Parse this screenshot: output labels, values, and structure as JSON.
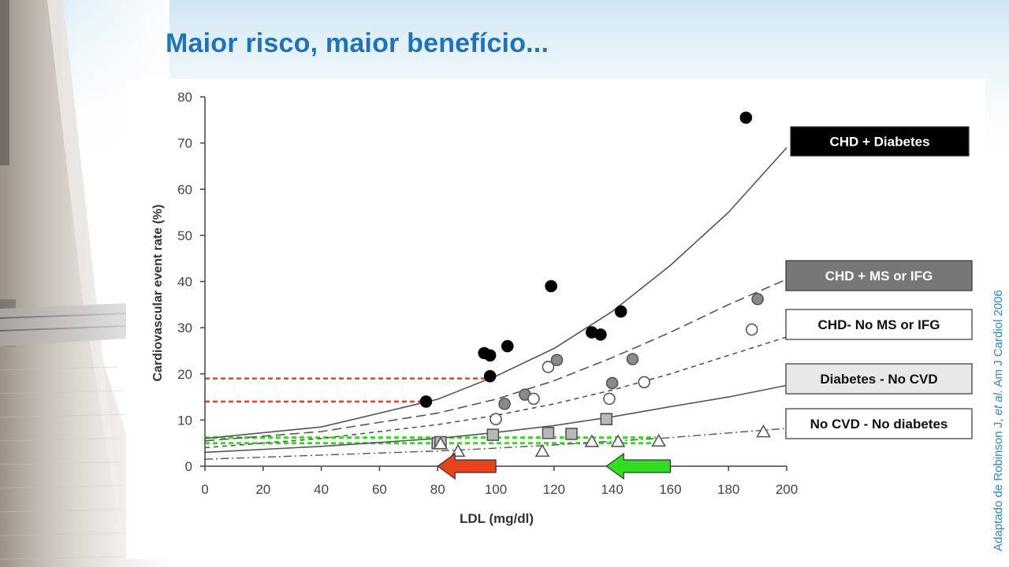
{
  "slide": {
    "title": "Maior risco, maior benefício...",
    "citation_prefix": "Adaptado de Robinson J, ",
    "citation_italic": "et al.",
    "citation_suffix": "  Am J Cardiol 2006"
  },
  "colors": {
    "title": "#1f73b8",
    "citation": "#2a88c7",
    "red_marker": "#e8431c",
    "green_marker": "#33dd22"
  },
  "chart_data": {
    "type": "scatter",
    "xlabel": "LDL (mg/dl)",
    "ylabel": "Cardiovascular event rate (%)",
    "xlim": [
      0,
      200
    ],
    "ylim": [
      0,
      80
    ],
    "xticks": [
      0,
      20,
      40,
      60,
      80,
      100,
      120,
      140,
      160,
      180,
      200
    ],
    "yticks": [
      0,
      10,
      20,
      30,
      40,
      50,
      60,
      70,
      80
    ],
    "series": [
      {
        "name": "CHD + Diabetes",
        "marker": "filled-black-circle",
        "points": [
          [
            76,
            14
          ],
          [
            96,
            24.5
          ],
          [
            98,
            24
          ],
          [
            98,
            19.5
          ],
          [
            104,
            26
          ],
          [
            119,
            39
          ],
          [
            133,
            29
          ],
          [
            136,
            28.5
          ],
          [
            143,
            33.5
          ],
          [
            186,
            75.5
          ]
        ],
        "curve": [
          [
            0,
            6
          ],
          [
            40,
            8.5
          ],
          [
            80,
            14.5
          ],
          [
            100,
            19.5
          ],
          [
            120,
            25.5
          ],
          [
            140,
            33.5
          ],
          [
            160,
            43.5
          ],
          [
            180,
            55
          ],
          [
            200,
            69
          ]
        ]
      },
      {
        "name": "CHD + MS or IFG",
        "marker": "gray-circle",
        "points": [
          [
            103,
            13.5
          ],
          [
            110,
            15.5
          ],
          [
            121,
            23
          ],
          [
            140,
            18
          ],
          [
            147,
            23.2
          ],
          [
            190,
            36.2
          ]
        ],
        "curve": [
          [
            0,
            5.5
          ],
          [
            40,
            7.5
          ],
          [
            80,
            11.5
          ],
          [
            100,
            14.5
          ],
          [
            120,
            18.5
          ],
          [
            140,
            23.5
          ],
          [
            160,
            29
          ],
          [
            180,
            35
          ],
          [
            200,
            40.5
          ]
        ]
      },
      {
        "name": "CHD- No MS or IFG",
        "marker": "open-circle",
        "points": [
          [
            100,
            10.2
          ],
          [
            113,
            14.6
          ],
          [
            118,
            21.5
          ],
          [
            139,
            14.6
          ],
          [
            151,
            18.2
          ],
          [
            188,
            29.6
          ]
        ],
        "curve": [
          [
            0,
            4
          ],
          [
            40,
            6
          ],
          [
            80,
            9
          ],
          [
            100,
            11
          ],
          [
            120,
            13.5
          ],
          [
            140,
            16.5
          ],
          [
            160,
            20
          ],
          [
            180,
            24
          ],
          [
            200,
            28
          ]
        ]
      },
      {
        "name": "Diabetes - No CVD",
        "marker": "gray-square",
        "points": [
          [
            80,
            5
          ],
          [
            81,
            5.2
          ],
          [
            99,
            6.8
          ],
          [
            118,
            7.2
          ],
          [
            126,
            7.0
          ],
          [
            138,
            10.2
          ]
        ],
        "curve": [
          [
            0,
            3
          ],
          [
            40,
            4.3
          ],
          [
            80,
            6
          ],
          [
            100,
            7.3
          ],
          [
            120,
            8.8
          ],
          [
            140,
            10.7
          ],
          [
            160,
            12.9
          ],
          [
            180,
            15
          ],
          [
            200,
            17.5
          ]
        ]
      },
      {
        "name": "No CVD - No diabetes",
        "marker": "open-triangle",
        "points": [
          [
            81,
            4.8
          ],
          [
            87,
            3.2
          ],
          [
            116,
            3.2
          ],
          [
            133,
            5.3
          ],
          [
            142,
            5.3
          ],
          [
            156,
            5.4
          ],
          [
            192,
            7.4
          ]
        ],
        "curve": [
          [
            0,
            1.5
          ],
          [
            40,
            2.4
          ],
          [
            80,
            3.3
          ],
          [
            100,
            3.9
          ],
          [
            120,
            4.6
          ],
          [
            140,
            5.4
          ],
          [
            160,
            6.2
          ],
          [
            180,
            7.2
          ],
          [
            200,
            8.2
          ]
        ]
      }
    ],
    "reference_lines": [
      {
        "color": "red",
        "y": 19,
        "x_from": 0,
        "x_to": 98
      },
      {
        "color": "red",
        "y": 14,
        "x_from": 0,
        "x_to": 76
      },
      {
        "color": "green",
        "y": 6.2,
        "x_from": 0,
        "x_to": 155
      },
      {
        "color": "green",
        "y": 5.0,
        "x_from": 0,
        "x_to": 155
      }
    ],
    "arrows": [
      {
        "color": "red",
        "direction": "left",
        "x_from": 100,
        "x_to": 80,
        "y": 0
      },
      {
        "color": "green",
        "direction": "left",
        "x_from": 160,
        "x_to": 138,
        "y": 0
      }
    ]
  }
}
